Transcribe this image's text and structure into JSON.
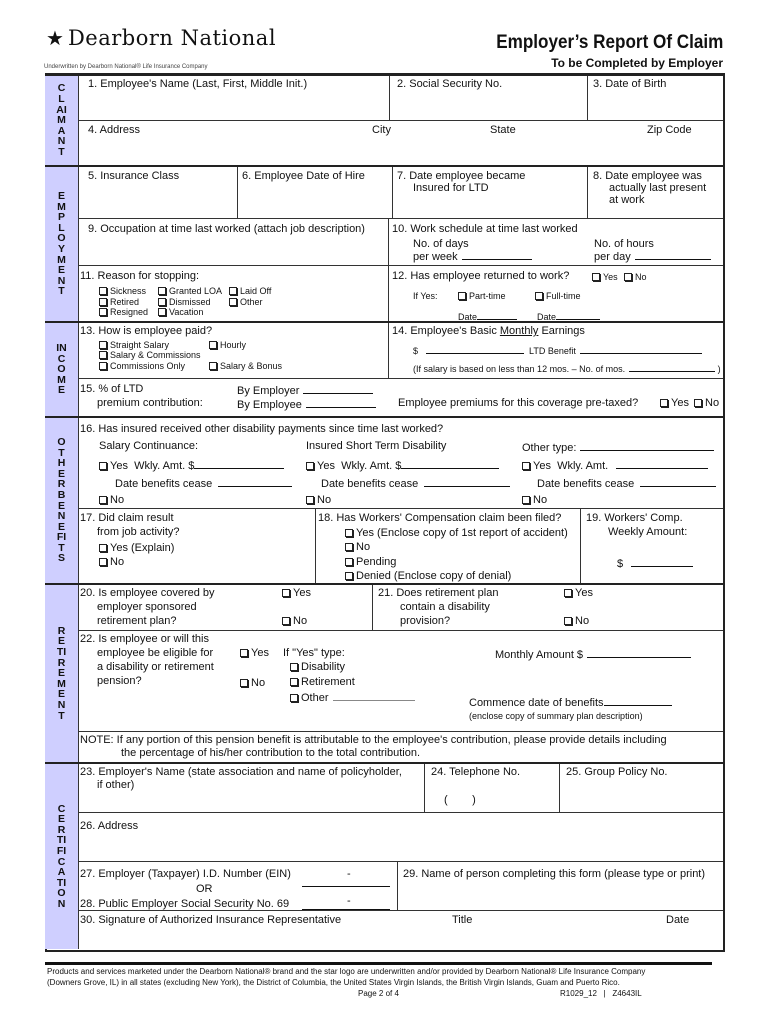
{
  "header": {
    "logo_text": "Dearborn National",
    "underwritten": "Underwritten by Dearborn National® Life Insurance Company",
    "title": "Employer’s Report Of Claim",
    "subtitle": "To be Completed by Employer"
  },
  "sidebar": {
    "claimant": "CLAIMANT",
    "employment": "EMPLOYMENT",
    "income": "INCOME",
    "other_benefits": "OTHER BENEFITS",
    "retirement": "RETIREMENT",
    "certification": "CERTIFICATION"
  },
  "claimant": {
    "q1": "1. Employee's Name (Last, First, Middle Init.)",
    "q2": "2. Social Security No.",
    "q3": "3. Date of Birth",
    "q4": "4. Address",
    "city": "City",
    "state": "State",
    "zip": "Zip Code"
  },
  "employment": {
    "q5": "5. Insurance Class",
    "q6": "6. Employee Date of Hire",
    "q7": [
      "7. Date employee became",
      "Insured for LTD"
    ],
    "q8": [
      "8. Date employee was",
      "actually last present",
      "at work"
    ],
    "q9": "9. Occupation at time last worked (attach job description)",
    "q10": "10. Work schedule at time last worked",
    "days": [
      "No. of days",
      "per week"
    ],
    "hours": [
      "No. of hours",
      "per day"
    ],
    "q11": "11. Reason for stopping:",
    "reasons": [
      "Sickness",
      "Granted LOA",
      "Laid Off",
      "Retired",
      "Dismissed",
      "Other",
      "Resigned",
      "Vacation"
    ],
    "q12": "12. Has employee returned to work?",
    "yes": "Yes",
    "no": "No",
    "if_yes": "If Yes:",
    "part_time": "Part-time",
    "full_time": "Full-time",
    "date": "Date"
  },
  "income": {
    "q13": "13. How is employee paid?",
    "pay_types": [
      "Straight Salary",
      "Hourly",
      "Salary & Commissions",
      "Commissions Only",
      "Salary & Bonus"
    ],
    "q14_pre": "14. Employee's Basic ",
    "q14_u": "Monthly",
    "q14_post": " Earnings",
    "dollar": "$",
    "ltd_benefit": "LTD Benefit",
    "months_note_pre": "(If salary is based on less than 12 mos. – No. of mos.",
    "months_note_post": ")",
    "q15": [
      "15. % of LTD",
      "premium contribution:"
    ],
    "by_employer": "By Employer",
    "by_employee": "By Employee",
    "pretax": "Employee premiums for this coverage pre-taxed?",
    "yes": "Yes",
    "no": "No"
  },
  "other_benefits": {
    "q16": "16. Has insured received other disability payments since time last worked?",
    "salary_continuance": "Salary Continuance:",
    "std": "Insured Short Term Disability",
    "other_type": "Other type:",
    "yes": "Yes",
    "wkly_amt_dollar": "Wkly. Amt. $",
    "wkly_amt": "Wkly. Amt.",
    "date_cease": "Date benefits cease",
    "no": "No",
    "q17": [
      "17. Did claim result",
      "from job activity?"
    ],
    "yes_explain": "Yes (Explain)",
    "q18": "18. Has Workers' Compensation claim been filed?",
    "q18_options": [
      "Yes (Enclose copy of 1st  report of accident)",
      "No",
      "Pending",
      "Denied (Enclose copy of denial)"
    ],
    "q19": [
      "19. Workers' Comp.",
      "Weekly Amount:"
    ],
    "dollar": "$"
  },
  "retirement": {
    "q20": [
      "20. Is employee covered by",
      "employer sponsored",
      "retirement plan?"
    ],
    "q21": [
      "21. Does retirement plan",
      "contain a disability",
      "provision?"
    ],
    "yes": "Yes",
    "no": "No",
    "q22": [
      "22. Is employee or will this",
      "employee be eligible for",
      "a disability or retirement",
      "pension?"
    ],
    "if_yes_type": "If \"Yes\" type:",
    "types": [
      "Disability",
      "Retirement",
      "Other"
    ],
    "monthly_amount": "Monthly Amount $",
    "commence": "Commence date of benefits",
    "enclose": "(enclose copy of summary plan description)",
    "note": [
      "NOTE:  If any portion of this pension benefit is attributable to the employee's contribution, please provide details including",
      "the percentage of his/her contribution to the total contribution."
    ]
  },
  "certification": {
    "q23": [
      "23. Employer's Name (state association and name of policyholder,",
      "if other)"
    ],
    "q24": "24. Telephone No.",
    "phone_parens": "(        )",
    "q25": "25. Group Policy No.",
    "q26": "26. Address",
    "q27": "27. Employer (Taxpayer) I.D. Number (EIN)",
    "dash": "-",
    "or": "OR",
    "q28": "28. Public Employer Social Security No. 69",
    "q29": "29. Name of person completing this form (please type or print)",
    "q30": "30. Signature of Authorized Insurance Representative",
    "title": "Title",
    "date": "Date"
  },
  "footer": {
    "line1": "Products and services marketed under the Dearborn National® brand and the star logo are underwritten and/or provided by Dearborn National® Life Insurance Company",
    "line2": "(Downers Grove, IL) in all states (excluding New York), the District of Columbia, the United States Virgin Islands, the British Virgin Islands, Guam and Puerto Rico.",
    "page": "Page 2 of 4",
    "form_code": "R1029_12   |   Z4643IL"
  },
  "colors": {
    "sidebar": "#cfcfff",
    "rule": "#222222"
  }
}
